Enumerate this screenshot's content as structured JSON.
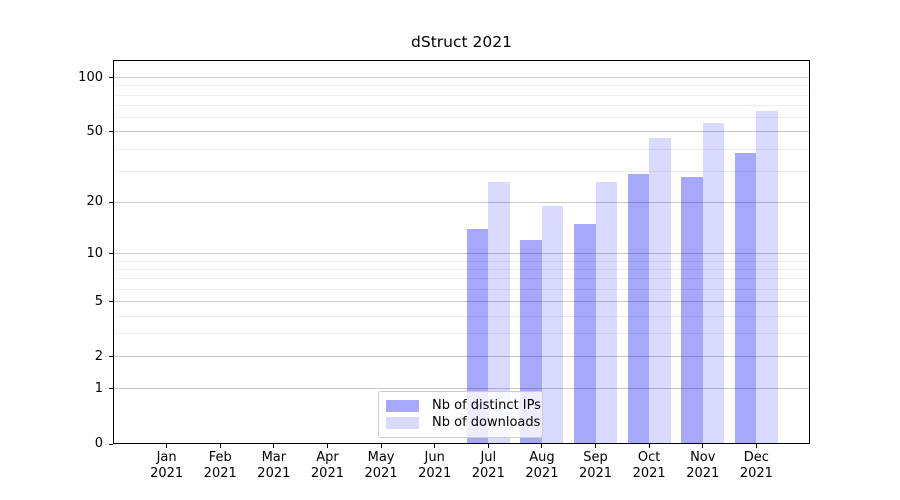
{
  "chart_data": {
    "type": "bar",
    "title": "dStruct 2021",
    "categories": [
      "Jan 2021",
      "Feb 2021",
      "Mar 2021",
      "Apr 2021",
      "May 2021",
      "Jun 2021",
      "Jul 2021",
      "Aug 2021",
      "Sep 2021",
      "Oct 2021",
      "Nov 2021",
      "Dec 2021"
    ],
    "series": [
      {
        "name": "Nb of distinct IPs",
        "base_color": "#0a0af5",
        "alpha": 0.36,
        "values": [
          0,
          0,
          0,
          0,
          0,
          0,
          14,
          12,
          15,
          29,
          28,
          38
        ]
      },
      {
        "name": "Nb of downloads",
        "base_color": "#0a0af5",
        "alpha": 0.15,
        "values": [
          0,
          0,
          0,
          0,
          0,
          0,
          26,
          19,
          26,
          46,
          56,
          65
        ]
      }
    ],
    "xlabel": "",
    "ylabel": "",
    "y_axis": {
      "scale": "log1p",
      "ticks": [
        0,
        1,
        2,
        5,
        10,
        20,
        50,
        100
      ],
      "minor_gridlines": [
        3,
        4,
        6,
        7,
        8,
        9,
        30,
        40,
        60,
        70,
        80,
        90
      ],
      "max": 125
    },
    "grid": {
      "major_color": "#c8c8c8",
      "minor_color": "#ebebf1"
    },
    "legend_position": "lower center",
    "background": "#ffffff",
    "spine_color": "#000000"
  }
}
